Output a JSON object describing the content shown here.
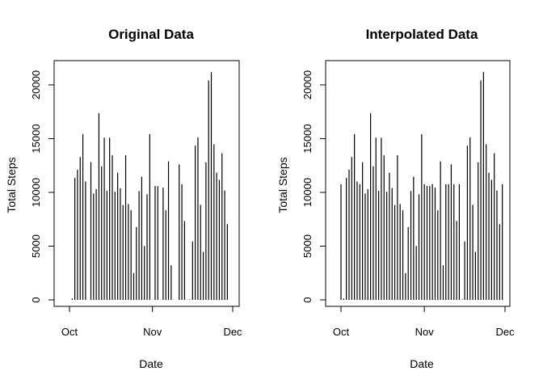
{
  "chart_data": [
    {
      "type": "bar",
      "title": "Original Data",
      "xlabel": "Date",
      "ylabel": "Total Steps",
      "x_ticks": [
        "Oct",
        "Nov",
        "Dec"
      ],
      "y_ticks": [
        0,
        5000,
        10000,
        15000,
        20000
      ],
      "ylim": [
        0,
        21200
      ],
      "x_start": "2012-10-01",
      "x_end": "2012-12-01",
      "dates": [
        "2012-10-01",
        "2012-10-02",
        "2012-10-03",
        "2012-10-04",
        "2012-10-05",
        "2012-10-06",
        "2012-10-07",
        "2012-10-08",
        "2012-10-09",
        "2012-10-10",
        "2012-10-11",
        "2012-10-12",
        "2012-10-13",
        "2012-10-14",
        "2012-10-15",
        "2012-10-16",
        "2012-10-17",
        "2012-10-18",
        "2012-10-19",
        "2012-10-20",
        "2012-10-21",
        "2012-10-22",
        "2012-10-23",
        "2012-10-24",
        "2012-10-25",
        "2012-10-26",
        "2012-10-27",
        "2012-10-28",
        "2012-10-29",
        "2012-10-30",
        "2012-10-31",
        "2012-11-01",
        "2012-11-02",
        "2012-11-03",
        "2012-11-04",
        "2012-11-05",
        "2012-11-06",
        "2012-11-07",
        "2012-11-08",
        "2012-11-09",
        "2012-11-10",
        "2012-11-11",
        "2012-11-12",
        "2012-11-13",
        "2012-11-14",
        "2012-11-15",
        "2012-11-16",
        "2012-11-17",
        "2012-11-18",
        "2012-11-19",
        "2012-11-20",
        "2012-11-21",
        "2012-11-22",
        "2012-11-23",
        "2012-11-24",
        "2012-11-25",
        "2012-11-26",
        "2012-11-27",
        "2012-11-28",
        "2012-11-29",
        "2012-11-30"
      ],
      "values": [
        0,
        126,
        11352,
        12116,
        13294,
        15420,
        11015,
        0,
        12811,
        9900,
        10304,
        17382,
        12426,
        15098,
        10139,
        15084,
        13452,
        10056,
        11829,
        10395,
        8821,
        13460,
        8918,
        8355,
        2492,
        6778,
        10119,
        11458,
        5018,
        9819,
        15414,
        0,
        10600,
        10571,
        0,
        10439,
        8334,
        12883,
        3219,
        0,
        0,
        12608,
        10765,
        7336,
        0,
        41,
        5441,
        14339,
        15110,
        8841,
        4472,
        12787,
        20427,
        21194,
        14478,
        11834,
        11162,
        13646,
        10183,
        7047,
        0
      ]
    },
    {
      "type": "bar",
      "title": "Interpolated Data",
      "xlabel": "Date",
      "ylabel": "Total Steps",
      "x_ticks": [
        "Oct",
        "Nov",
        "Dec"
      ],
      "y_ticks": [
        0,
        5000,
        10000,
        15000,
        20000
      ],
      "ylim": [
        0,
        21200
      ],
      "x_start": "2012-10-01",
      "x_end": "2012-12-01",
      "dates": [
        "2012-10-01",
        "2012-10-02",
        "2012-10-03",
        "2012-10-04",
        "2012-10-05",
        "2012-10-06",
        "2012-10-07",
        "2012-10-08",
        "2012-10-09",
        "2012-10-10",
        "2012-10-11",
        "2012-10-12",
        "2012-10-13",
        "2012-10-14",
        "2012-10-15",
        "2012-10-16",
        "2012-10-17",
        "2012-10-18",
        "2012-10-19",
        "2012-10-20",
        "2012-10-21",
        "2012-10-22",
        "2012-10-23",
        "2012-10-24",
        "2012-10-25",
        "2012-10-26",
        "2012-10-27",
        "2012-10-28",
        "2012-10-29",
        "2012-10-30",
        "2012-10-31",
        "2012-11-01",
        "2012-11-02",
        "2012-11-03",
        "2012-11-04",
        "2012-11-05",
        "2012-11-06",
        "2012-11-07",
        "2012-11-08",
        "2012-11-09",
        "2012-11-10",
        "2012-11-11",
        "2012-11-12",
        "2012-11-13",
        "2012-11-14",
        "2012-11-15",
        "2012-11-16",
        "2012-11-17",
        "2012-11-18",
        "2012-11-19",
        "2012-11-20",
        "2012-11-21",
        "2012-11-22",
        "2012-11-23",
        "2012-11-24",
        "2012-11-25",
        "2012-11-26",
        "2012-11-27",
        "2012-11-28",
        "2012-11-29",
        "2012-11-30"
      ],
      "values": [
        10766,
        126,
        11352,
        12116,
        13294,
        15420,
        11015,
        10766,
        12811,
        9900,
        10304,
        17382,
        12426,
        15098,
        10139,
        15084,
        13452,
        10056,
        11829,
        10395,
        8821,
        13460,
        8918,
        8355,
        2492,
        6778,
        10119,
        11458,
        5018,
        9819,
        15414,
        10766,
        10600,
        10571,
        10766,
        10439,
        8334,
        12883,
        3219,
        10766,
        10766,
        12608,
        10765,
        7336,
        10766,
        41,
        5441,
        14339,
        15110,
        8841,
        4472,
        12787,
        20427,
        21194,
        14478,
        11834,
        11162,
        13646,
        10183,
        7047,
        10766
      ]
    }
  ]
}
